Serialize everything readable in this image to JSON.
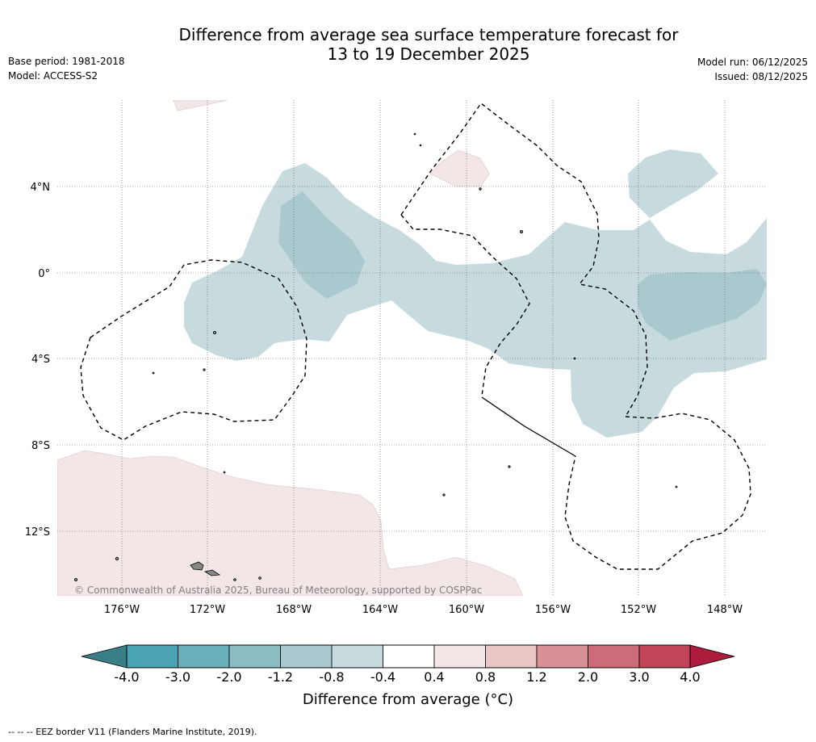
{
  "title": {
    "line1": "Difference from average sea surface temperature forecast for",
    "line2": "13 to 19 December 2025"
  },
  "meta_left": {
    "base_period": "Base period: 1981-2018",
    "model": "Model: ACCESS-S2"
  },
  "meta_right": {
    "model_run": "Model run: 06/12/2025",
    "issued": "Issued: 08/12/2025"
  },
  "map": {
    "extent": {
      "lon_west": -179,
      "lon_east": -146,
      "lat_north": 8,
      "lat_south": -15
    },
    "lat_labels": [
      "4°N",
      "0°",
      "4°S",
      "8°S",
      "12°S"
    ],
    "lon_labels": [
      "176°W",
      "172°W",
      "168°W",
      "164°W",
      "160°W",
      "156°W",
      "152°W",
      "148°W"
    ],
    "copyright": "© Commonwealth of Australia 2025, Bureau of Meteorology, supported by COSPPac"
  },
  "colorbar": {
    "ticks": [
      "-4.0",
      "-3.0",
      "-2.0",
      "-1.2",
      "-0.8",
      "-0.4",
      "0.4",
      "0.8",
      "1.2",
      "2.0",
      "3.0",
      "4.0"
    ],
    "colors": {
      "below_min": "#3a7f87",
      "bins": [
        "#4aa3b2",
        "#6aaeba",
        "#8bbcc3",
        "#a9c9ce",
        "#c7dbdf",
        "#ffffff",
        "#f3e6e7",
        "#e8c6c3",
        "#d89196",
        "#cd6b78",
        "#c04657"
      ],
      "above_max": "#ad1c3c"
    },
    "label": "Difference from average (°C)"
  },
  "footer": "--  --  -- EEZ border V11 (Flanders Marine Institute, 2019)."
}
